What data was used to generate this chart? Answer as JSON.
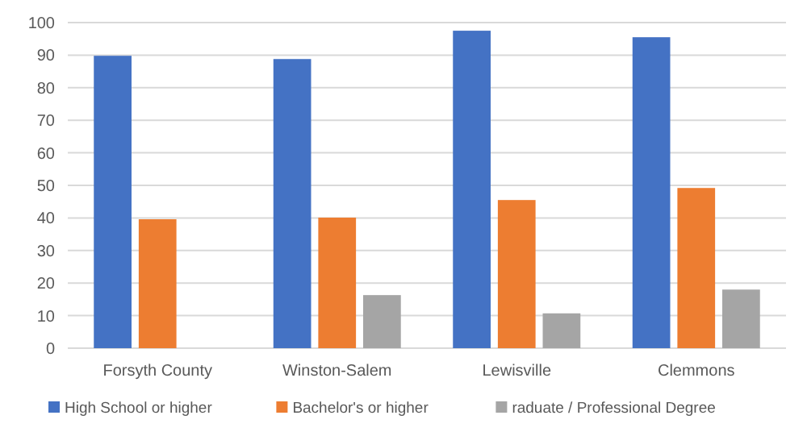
{
  "chart_data": {
    "type": "bar",
    "categories": [
      "Forsyth County",
      "Winston-Salem",
      "Lewisville",
      "Clemmons"
    ],
    "series": [
      {
        "name": "High School or higher",
        "color": "#4472c4",
        "values": [
          89.8,
          88.8,
          97.5,
          95.5
        ]
      },
      {
        "name": "Bachelor's or higher",
        "color": "#ed7d31",
        "values": [
          39.6,
          40.1,
          45.5,
          49.2
        ]
      },
      {
        "name": "raduate / Professional Degree",
        "color": "#a5a5a5",
        "values": [
          null,
          16.3,
          10.7,
          18.0
        ]
      }
    ],
    "ylim": [
      0,
      100
    ],
    "yticks": [
      0,
      10,
      20,
      30,
      40,
      50,
      60,
      70,
      80,
      90,
      100
    ],
    "grid": "y",
    "legend": "bottom"
  }
}
